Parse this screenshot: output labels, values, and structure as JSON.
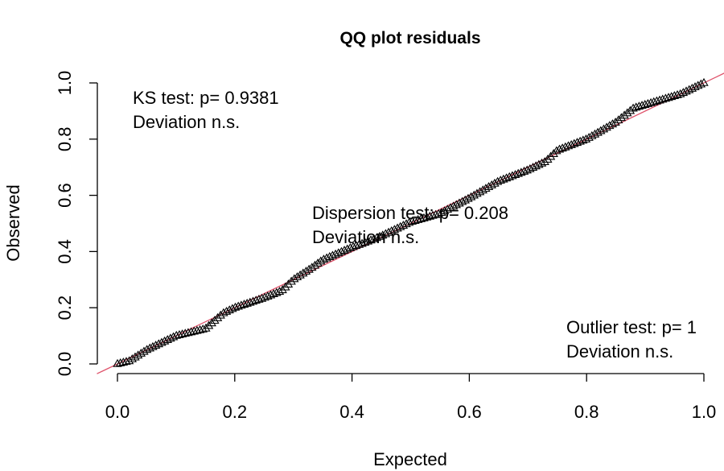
{
  "chart_data": {
    "type": "scatter",
    "title": "QQ plot residuals",
    "xlabel": "Expected",
    "ylabel": "Observed",
    "xlim": [
      0,
      1
    ],
    "ylim": [
      0,
      1
    ],
    "xticks": [
      "0.0",
      "0.2",
      "0.4",
      "0.6",
      "0.8",
      "1.0"
    ],
    "yticks": [
      "0.0",
      "0.2",
      "0.4",
      "0.6",
      "0.8",
      "1.0"
    ],
    "point_marker": "open-triangle",
    "reference_line": {
      "slope": 1,
      "intercept": 0,
      "color": "#DF536B"
    },
    "curve": [
      [
        0.0,
        0.0
      ],
      [
        0.02,
        0.01
      ],
      [
        0.05,
        0.05
      ],
      [
        0.08,
        0.08
      ],
      [
        0.1,
        0.1
      ],
      [
        0.15,
        0.125
      ],
      [
        0.18,
        0.18
      ],
      [
        0.2,
        0.2
      ],
      [
        0.25,
        0.235
      ],
      [
        0.28,
        0.26
      ],
      [
        0.3,
        0.3
      ],
      [
        0.33,
        0.34
      ],
      [
        0.35,
        0.37
      ],
      [
        0.4,
        0.415
      ],
      [
        0.42,
        0.43
      ],
      [
        0.45,
        0.455
      ],
      [
        0.5,
        0.505
      ],
      [
        0.55,
        0.535
      ],
      [
        0.6,
        0.59
      ],
      [
        0.65,
        0.65
      ],
      [
        0.7,
        0.69
      ],
      [
        0.73,
        0.72
      ],
      [
        0.75,
        0.76
      ],
      [
        0.8,
        0.8
      ],
      [
        0.85,
        0.86
      ],
      [
        0.88,
        0.91
      ],
      [
        0.92,
        0.935
      ],
      [
        0.96,
        0.96
      ],
      [
        1.0,
        1.0
      ]
    ],
    "point_count": 200,
    "annotations": [
      {
        "line1": "KS test: p= 0.9381",
        "line2": "Deviation  n.s."
      },
      {
        "line1": "Dispersion test: p= 0.208",
        "line2": "Deviation  n.s."
      },
      {
        "line1": "Outlier test: p= 1",
        "line2": "Deviation  n.s."
      }
    ]
  }
}
